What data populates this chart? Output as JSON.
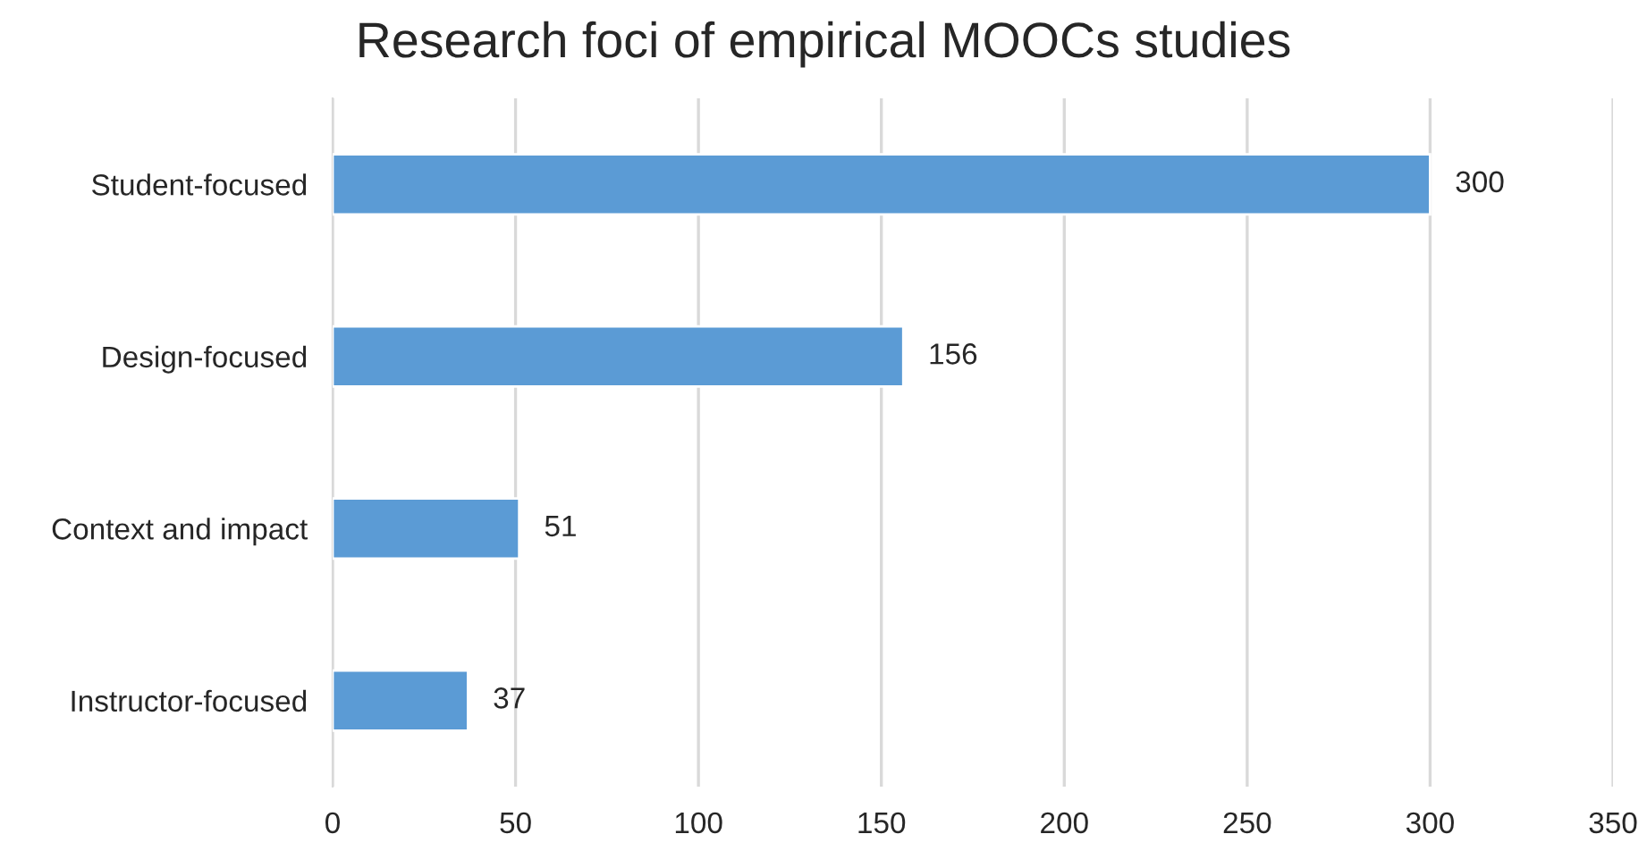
{
  "chart_data": {
    "type": "bar",
    "title": "Research foci of empirical MOOCs studies",
    "orientation": "horizontal",
    "categories": [
      "Student-focused",
      "Design-focused",
      "Context and impact",
      "Instructor-focused"
    ],
    "values": [
      300,
      156,
      51,
      37
    ],
    "color": "#5b9bd5",
    "xlim": [
      0,
      350
    ],
    "xticks": [
      0,
      50,
      100,
      150,
      200,
      250,
      300,
      350
    ],
    "grid": "x",
    "data_labels": true
  }
}
